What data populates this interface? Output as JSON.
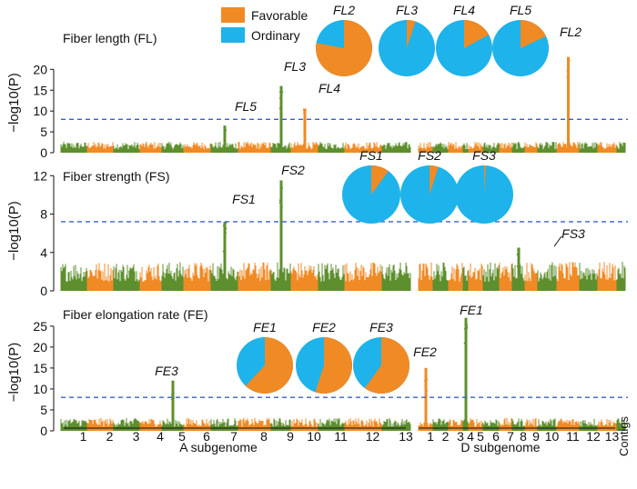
{
  "colors": {
    "orange": "#f08a24",
    "green": "#5d8f2e",
    "blue": "#1eb3ea",
    "threshold": "#3a5fc4"
  },
  "legend": [
    {
      "label": "Favorable",
      "color": "#f08a24"
    },
    {
      "label": "Ordinary",
      "color": "#1eb3ea"
    }
  ],
  "chart_data": [
    {
      "type": "scatter",
      "title": "Fiber length (FL)",
      "ylabel": "−log10(P)",
      "ylim": [
        0,
        24
      ],
      "yticks": [
        0,
        5,
        10,
        15,
        20
      ],
      "threshold": 8,
      "peaks": [
        {
          "label": "FL2",
          "chromosome": "D11",
          "value": 23
        },
        {
          "label": "FL3",
          "chromosome": "A9",
          "value": 16
        },
        {
          "label": "FL4",
          "chromosome": "A10",
          "value": 10.5
        },
        {
          "label": "FL5",
          "chromosome": "A7",
          "value": 6.5
        }
      ],
      "pies": [
        {
          "label": "FL2",
          "favorable": 0.78
        },
        {
          "label": "FL3",
          "favorable": 0.05
        },
        {
          "label": "FL4",
          "favorable": 0.17
        },
        {
          "label": "FL5",
          "favorable": 0.18
        }
      ]
    },
    {
      "type": "scatter",
      "title": "Fiber strength (FS)",
      "ylabel": "−log10(P)",
      "ylim": [
        0,
        12.5
      ],
      "yticks": [
        0,
        4,
        8,
        12
      ],
      "threshold": 7.2,
      "peaks": [
        {
          "label": "FS1",
          "chromosome": "A7",
          "value": 7.2
        },
        {
          "label": "FS2",
          "chromosome": "A9",
          "value": 11.5
        },
        {
          "label": "FS3",
          "chromosome": "D8",
          "value": 4.5
        }
      ],
      "pies": [
        {
          "label": "FS1",
          "favorable": 0.1
        },
        {
          "label": "FS2",
          "favorable": 0.05
        },
        {
          "label": "FS3",
          "favorable": 0.01
        }
      ]
    },
    {
      "type": "scatter",
      "title": "Fiber elongation rate (FE)",
      "ylabel": "−log10(P)",
      "ylim": [
        0,
        28
      ],
      "yticks": [
        0,
        5,
        10,
        15,
        20,
        25
      ],
      "threshold": 8,
      "peaks": [
        {
          "label": "FE1",
          "chromosome": "D4",
          "value": 27
        },
        {
          "label": "FE2",
          "chromosome": "D1",
          "value": 15
        },
        {
          "label": "FE3",
          "chromosome": "A5",
          "value": 12
        }
      ],
      "pies": [
        {
          "label": "FE1",
          "favorable": 0.62
        },
        {
          "label": "FE2",
          "favorable": 0.55
        },
        {
          "label": "FE3",
          "favorable": 0.6
        }
      ]
    }
  ],
  "xaxis": {
    "a_chromosomes": [
      "1",
      "2",
      "3",
      "4",
      "5",
      "6",
      "7",
      "8",
      "9",
      "10",
      "11",
      "12",
      "13"
    ],
    "d_chromosomes": [
      "1",
      "2",
      "3",
      "4",
      "5",
      "6",
      "7",
      "8",
      "9",
      "10",
      "11",
      "12",
      "13"
    ],
    "contigs_label": "Contigs",
    "a_label": "A subgenome",
    "d_label": "D subgenome"
  }
}
